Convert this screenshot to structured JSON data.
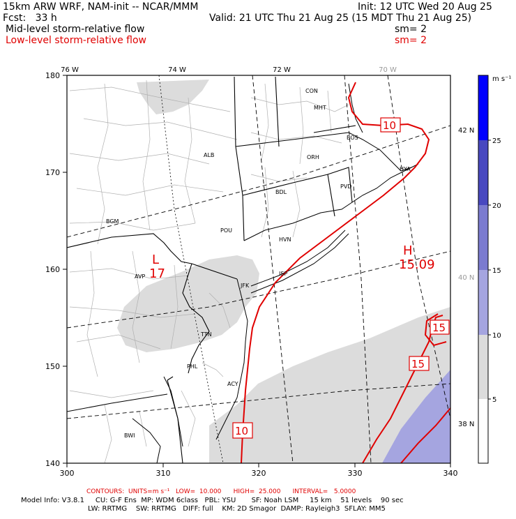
{
  "header": {
    "model_line": "15km ARW WRF, NAM-init -- NCAR/MMM",
    "fcst_line": "Fcst:   33 h",
    "init_line": "Init: 12 UTC Wed 20 Aug 25",
    "valid_line": "Valid: 21 UTC Thu 21 Aug 25 (15 MDT Thu 21 Aug 25)",
    "field1_label": "Mid-level storm-relative flow",
    "field1_sm": "sm= 2",
    "field2_label": "Low-level storm-relative flow",
    "field2_sm": "sm= 2"
  },
  "axes": {
    "x_ticks": [
      "300",
      "310",
      "320",
      "330",
      "340"
    ],
    "y_ticks": [
      "140",
      "150",
      "160",
      "170",
      "180"
    ],
    "lon_labels": [
      "76 W",
      "74 W",
      "72 W",
      "70 W"
    ],
    "lat_labels": [
      "42 N",
      "40 N",
      "38 N"
    ]
  },
  "cities": [
    {
      "name": "CON"
    },
    {
      "name": "MHT"
    },
    {
      "name": "BOS"
    },
    {
      "name": "ALB"
    },
    {
      "name": "ORH"
    },
    {
      "name": "PVD"
    },
    {
      "name": "BDL"
    },
    {
      "name": "BGM"
    },
    {
      "name": "POU"
    },
    {
      "name": "HVN"
    },
    {
      "name": "AVP"
    },
    {
      "name": "ISP"
    },
    {
      "name": "JFK"
    },
    {
      "name": "TTN"
    },
    {
      "name": "PHL"
    },
    {
      "name": "ACY"
    },
    {
      "name": "BWI"
    },
    {
      "name": "HYA"
    }
  ],
  "pressure_centers": {
    "low_symbol": "L",
    "low_value": "17",
    "high_symbol": "H",
    "high_value": "15.09"
  },
  "contour_labels": [
    "10",
    "15",
    "15",
    "10"
  ],
  "colorbar": {
    "units": "m s⁻¹",
    "ticks": [
      "5",
      "10",
      "15",
      "20",
      "25"
    ],
    "colors": [
      "#ffffff",
      "#dcdcdc",
      "#a5a5e0",
      "#7b7bd0",
      "#4848c0",
      "#0000ff"
    ]
  },
  "footer": {
    "contours": "CONTOURS:  UNITS=m s⁻¹   LOW=  10.000      HIGH=  25.000      INTERVAL=   5.0000",
    "model_info_1": "Model Info: V3.8.1     CU: G-F Ens  MP: WDM 6class   PBL: YSU       SF: Noah LSM     15 km    51 levels    90 sec",
    "model_info_2": "LW: RRTMG    SW: RRTMG   DIFF: full    KM: 2D Smagor  DAMP: Rayleigh3  SFLAY: MM5"
  },
  "colors": {
    "contour": "#e00000",
    "shade_light": "#dcdcdc",
    "shade_purple": "#a5a5e0",
    "land_lines": "#000000"
  }
}
